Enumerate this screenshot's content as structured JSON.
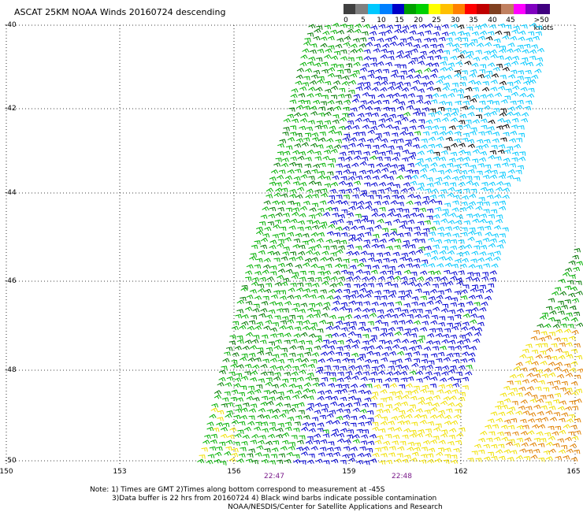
{
  "title": "ASCAT 25KM NOAA Winds 20160724 descending",
  "legend": {
    "ticks": [
      "0",
      "5",
      "10",
      "15",
      "20",
      "25",
      "30",
      "35",
      "40",
      "45",
      ">50 knots"
    ],
    "colors": [
      "#404040",
      "#808080",
      "#00c8ff",
      "#0080ff",
      "#0000c8",
      "#00a000",
      "#00d000",
      "#ffff00",
      "#ffc000",
      "#ff8000",
      "#ff0000",
      "#c00000",
      "#804020",
      "#c08060",
      "#ff00ff",
      "#8000c0",
      "#400080"
    ]
  },
  "latitude_labels": [
    "-40",
    "-42",
    "-44",
    "-46",
    "-48",
    "-50"
  ],
  "longitude_labels": [
    "150",
    "153",
    "156",
    "159",
    "162",
    "165"
  ],
  "time_labels": [
    "22:47",
    "22:48"
  ],
  "notes": [
    "Note: 1) Times are GMT 2)Times along bottom correspond to measurement at -45S",
    "3)Data buffer is 22 hrs from 20160724 4) Black wind barbs indicate possible contamination",
    "NOAA/NESDIS/Center for Satellite Applications and Research"
  ],
  "wind_speed_colors": {
    "light_blue": "#00c8ff",
    "blue": "#0000d0",
    "green": "#00b000",
    "dark_green": "#007800",
    "yellow": "#f0e000",
    "orange": "#e08000",
    "black": "#000000"
  }
}
